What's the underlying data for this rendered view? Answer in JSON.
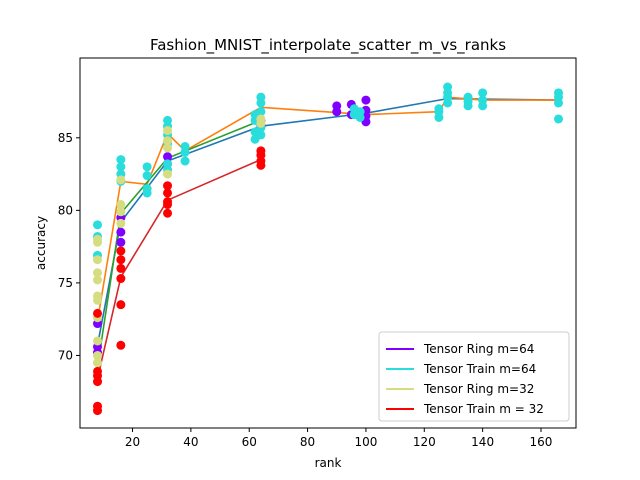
{
  "chart_data": {
    "type": "scatter",
    "title": "Fashion_MNIST_interpolate_scatter_m_vs_ranks",
    "xlabel": "rank",
    "ylabel": "accuracy",
    "xlim": [
      2,
      172
    ],
    "ylim": [
      65,
      90.5
    ],
    "xticks": [
      20,
      40,
      60,
      80,
      100,
      120,
      140,
      160
    ],
    "yticks": [
      70,
      75,
      80,
      85
    ],
    "grid": false,
    "legend_position": "bottom-right",
    "series": [
      {
        "name": "Tensor Ring m=64",
        "color": "#8000ff",
        "points": [
          [
            8,
            72.2
          ],
          [
            8,
            70.6
          ],
          [
            8,
            70.2
          ],
          [
            16,
            79.5
          ],
          [
            16,
            78.5
          ],
          [
            16,
            77.8
          ],
          [
            32,
            83.7
          ],
          [
            32,
            83.2
          ],
          [
            64,
            86.2
          ],
          [
            64,
            85.8
          ],
          [
            90,
            87.2
          ],
          [
            90,
            86.8
          ],
          [
            95,
            87.3
          ],
          [
            95,
            86.6
          ],
          [
            100,
            87.6
          ],
          [
            100,
            86.9
          ],
          [
            100,
            86.5
          ],
          [
            100,
            86.1
          ]
        ],
        "line_color": "#1f77b4",
        "line": [
          [
            8,
            70.7
          ],
          [
            16,
            79.2
          ],
          [
            32,
            83.4
          ],
          [
            64,
            85.8
          ],
          [
            100,
            86.7
          ],
          [
            128,
            87.7
          ],
          [
            166,
            87.6
          ]
        ]
      },
      {
        "name": "Tensor Train m=64",
        "color": "#2adddd",
        "points": [
          [
            8,
            79
          ],
          [
            8,
            78.2
          ],
          [
            8,
            76.9
          ],
          [
            16,
            83.5
          ],
          [
            16,
            83
          ],
          [
            16,
            82.5
          ],
          [
            16,
            82
          ],
          [
            25,
            83
          ],
          [
            25,
            82.4
          ],
          [
            25,
            81.5
          ],
          [
            25,
            81.2
          ],
          [
            32,
            86.2
          ],
          [
            32,
            85.8
          ],
          [
            32,
            85.2
          ],
          [
            32,
            84.6
          ],
          [
            32,
            83.2
          ],
          [
            32,
            82.8
          ],
          [
            38,
            84.4
          ],
          [
            38,
            84
          ],
          [
            38,
            83.4
          ],
          [
            62,
            86.6
          ],
          [
            62,
            86.2
          ],
          [
            62,
            85.4
          ],
          [
            62,
            84.9
          ],
          [
            64,
            87.8
          ],
          [
            64,
            87.4
          ],
          [
            64,
            86.8
          ],
          [
            64,
            85.7
          ],
          [
            64,
            85.2
          ],
          [
            96,
            87
          ],
          [
            96,
            86.6
          ],
          [
            98,
            86.8
          ],
          [
            98,
            86.4
          ],
          [
            125,
            87
          ],
          [
            125,
            86.8
          ],
          [
            125,
            86.4
          ],
          [
            128,
            88.5
          ],
          [
            128,
            88.1
          ],
          [
            128,
            87.8
          ],
          [
            128,
            87.4
          ],
          [
            135,
            87.8
          ],
          [
            135,
            87.5
          ],
          [
            135,
            87.2
          ],
          [
            140,
            88.1
          ],
          [
            140,
            87.6
          ],
          [
            140,
            87.2
          ],
          [
            166,
            88.1
          ],
          [
            166,
            87.8
          ],
          [
            166,
            87.4
          ],
          [
            166,
            86.3
          ]
        ],
        "line_color": "#ff7f0e",
        "line": [
          [
            8,
            72.4
          ],
          [
            16,
            82
          ],
          [
            25,
            81.8
          ],
          [
            32,
            85.3
          ],
          [
            38,
            84.1
          ],
          [
            64,
            87.1
          ],
          [
            100,
            86.6
          ],
          [
            125,
            86.8
          ],
          [
            128,
            87.8
          ],
          [
            140,
            87.6
          ],
          [
            166,
            87.6
          ]
        ]
      },
      {
        "name": "Tensor Ring m=32",
        "color": "#d4dd80",
        "points": [
          [
            8,
            78
          ],
          [
            8,
            77.8
          ],
          [
            8,
            76.6
          ],
          [
            8,
            75.7
          ],
          [
            8,
            75.2
          ],
          [
            8,
            74.1
          ],
          [
            8,
            73.8
          ],
          [
            8,
            72.6
          ],
          [
            8,
            71
          ],
          [
            8,
            70
          ],
          [
            8,
            69.5
          ],
          [
            16,
            80.4
          ],
          [
            16,
            79.9
          ],
          [
            16,
            79.1
          ],
          [
            16,
            82.1
          ],
          [
            32,
            85.5
          ],
          [
            32,
            84.8
          ],
          [
            32,
            84.3
          ],
          [
            32,
            82.5
          ],
          [
            64,
            86.3
          ],
          [
            64,
            86
          ]
        ],
        "line_color": "#2ca02c",
        "line": [
          [
            8,
            69.2
          ],
          [
            16,
            79.8
          ],
          [
            32,
            83.6
          ],
          [
            64,
            86.2
          ]
        ]
      },
      {
        "name": "Tensor Train m = 32",
        "color": "#ff0000",
        "points": [
          [
            8,
            72.9
          ],
          [
            8,
            68.9
          ],
          [
            8,
            68.6
          ],
          [
            8,
            68.2
          ],
          [
            8,
            66.5
          ],
          [
            8,
            66.2
          ],
          [
            16,
            77.2
          ],
          [
            16,
            76.6
          ],
          [
            16,
            76
          ],
          [
            16,
            75.3
          ],
          [
            16,
            73.5
          ],
          [
            16,
            70.7
          ],
          [
            32,
            81.7
          ],
          [
            32,
            81.2
          ],
          [
            32,
            80.6
          ],
          [
            32,
            80.4
          ],
          [
            32,
            79.8
          ],
          [
            64,
            84.1
          ],
          [
            64,
            83.8
          ],
          [
            64,
            83.4
          ],
          [
            64,
            83.1
          ]
        ],
        "line_color": "#d62728",
        "line": [
          [
            8,
            68.4
          ],
          [
            16,
            75.4
          ],
          [
            32,
            80.7
          ],
          [
            64,
            83.5
          ]
        ]
      }
    ]
  }
}
